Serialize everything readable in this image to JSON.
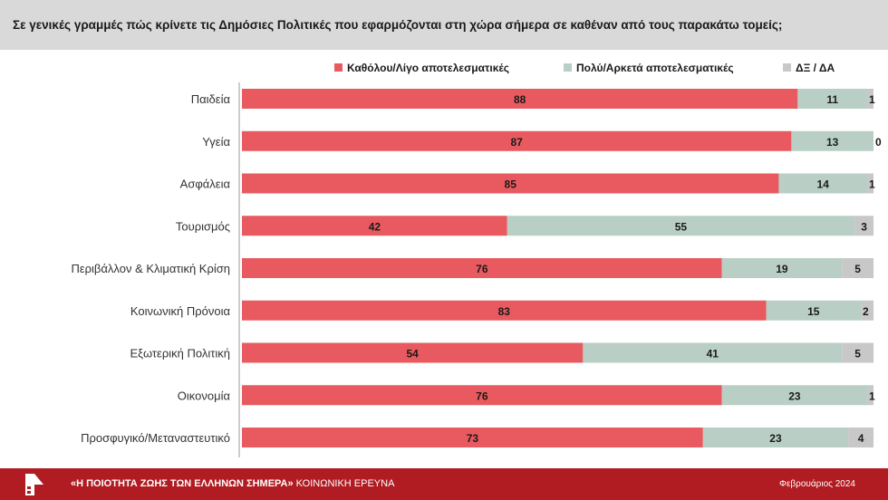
{
  "header": {
    "question": "Σε γενικές γραμμές πώς κρίνετε τις Δημόσιες Πολιτικές που εφαρμόζονται στη χώρα σήμερα σε καθέναν από τους παρακάτω τομείς;"
  },
  "footer": {
    "title_bold": "«Η ΠΟΙΟΤΗΤΑ ΖΩΗΣ ΤΩΝ ΕΛΛΗΝΩΝ ΣΗΜΕΡΑ»",
    "title_rest": " ΚΟΙΝΩΝΙΚΗ ΕΡΕΥΝΑ",
    "date": "Φεβρουάριος 2024",
    "logo_icon": "institute-logo-icon"
  },
  "chart_data": {
    "type": "bar",
    "orientation": "horizontal",
    "stacked": true,
    "legend_position": "top-right",
    "grid": false,
    "xlim": [
      0,
      100
    ],
    "categories": [
      "Παιδεία",
      "Υγεία",
      "Ασφάλεια",
      "Τουρισμός",
      "Περιβάλλον & Κλιματική Κρίση",
      "Κοινωνική Πρόνοια",
      "Εξωτερική Πολιτική",
      "Οικονομία",
      "Προσφυγικό/Μεταναστευτικό"
    ],
    "series": [
      {
        "name": "Καθόλου/Λίγο αποτελεσματικές",
        "color": "#e85a5f",
        "values": [
          88,
          87,
          85,
          42,
          76,
          83,
          54,
          76,
          73
        ]
      },
      {
        "name": "Πολύ/Αρκετά αποτελεσματικές",
        "color": "#b9cfc6",
        "values": [
          11,
          13,
          14,
          55,
          19,
          15,
          41,
          23,
          23
        ]
      },
      {
        "name": "ΔΞ / ΔΑ",
        "color": "#c8c8c8",
        "values": [
          1,
          0,
          1,
          3,
          5,
          2,
          5,
          1,
          4
        ]
      }
    ]
  }
}
